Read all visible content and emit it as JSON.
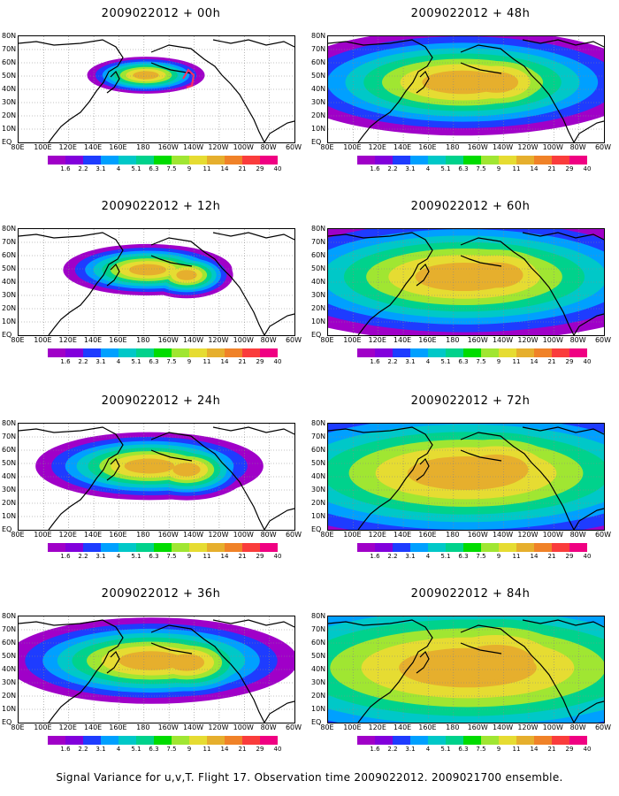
{
  "panels": [
    {
      "title": "2009022012 + 00h",
      "blobs": [
        [
          60,
          14,
          60,
          14,
          0.5
        ],
        [
          55,
          14,
          52,
          12,
          0.8
        ],
        [
          57,
          13,
          54,
          14,
          0.9
        ],
        [
          52,
          12,
          55,
          12,
          0.6
        ]
      ]
    },
    {
      "title": "2009022012 + 12h",
      "blobs": [
        [
          58,
          12,
          54,
          13,
          0.8
        ],
        [
          54,
          12,
          50,
          12,
          0.9
        ],
        [
          64,
          10,
          56,
          14,
          0.7
        ]
      ]
    },
    {
      "title": "2009022012 + 24h",
      "blobs": [
        [
          50,
          15,
          56,
          16,
          0.9
        ],
        [
          60,
          12,
          50,
          12,
          0.9
        ],
        [
          58,
          10,
          60,
          14,
          0.7
        ]
      ]
    },
    {
      "title": "2009022012 + 36h",
      "blobs": [
        [
          55,
          16,
          55,
          16,
          1.0
        ],
        [
          50,
          10,
          60,
          12,
          0.9
        ],
        [
          64,
          14,
          50,
          14,
          0.8
        ]
      ]
    },
    {
      "title": "2009022012 + 48h",
      "blobs": [
        [
          55,
          16,
          55,
          16,
          1.0
        ],
        [
          50,
          12,
          56,
          14,
          1.0
        ],
        [
          62,
          14,
          52,
          14,
          0.9
        ]
      ]
    },
    {
      "title": "2009022012 + 60h",
      "blobs": [
        [
          58,
          18,
          55,
          18,
          1.0
        ],
        [
          50,
          12,
          56,
          14,
          1.0
        ],
        [
          46,
          10,
          60,
          12,
          0.9
        ]
      ]
    },
    {
      "title": "2009022012 + 72h",
      "blobs": [
        [
          58,
          20,
          55,
          20,
          1.1
        ],
        [
          50,
          14,
          52,
          16,
          1.1
        ],
        [
          66,
          14,
          50,
          16,
          1.0
        ]
      ]
    },
    {
      "title": "2009022012 + 84h",
      "blobs": [
        [
          60,
          20,
          55,
          22,
          1.2
        ],
        [
          50,
          14,
          56,
          16,
          1.2
        ],
        [
          66,
          14,
          52,
          16,
          1.1
        ]
      ]
    }
  ],
  "map_axes": {
    "y_labels": [
      "80N",
      "70N",
      "60N",
      "50N",
      "40N",
      "30N",
      "20N",
      "10N",
      "EQ"
    ],
    "x_labels": [
      "80E",
      "100E",
      "120E",
      "140E",
      "160E",
      "180",
      "160W",
      "140W",
      "120W",
      "100W",
      "80W",
      "60W"
    ]
  },
  "colorbar": {
    "labels": [
      "1.6",
      "2.2",
      "3.1",
      "4",
      "5.1",
      "6.3",
      "7.5",
      "9",
      "11",
      "14",
      "21",
      "29",
      "40"
    ],
    "colors": [
      "#a000c8",
      "#8200dc",
      "#1e3cff",
      "#00a0ff",
      "#00c8c8",
      "#00d28c",
      "#00dc00",
      "#a0e632",
      "#e6dc32",
      "#e6af2d",
      "#f08228",
      "#fa3c3c",
      "#f00082"
    ]
  },
  "caption": "Signal Variance for u,v,T. Flight 17. Observation time 2009022012. 2009021700 ensemble."
}
